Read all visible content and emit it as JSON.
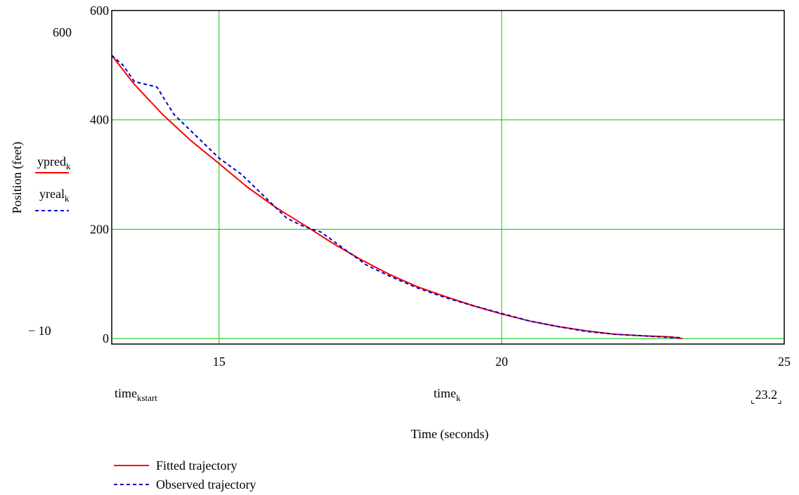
{
  "chart_data": {
    "type": "line",
    "x_range": [
      13.1,
      25
    ],
    "y_range": [
      -10,
      600
    ],
    "x_ticks": [
      15,
      20,
      25
    ],
    "y_ticks": [
      0,
      200,
      400,
      600
    ],
    "grid": true,
    "grid_color": "#00cc00",
    "axis_limit_labels": {
      "y_top": "600",
      "y_bottom": "− 10",
      "x_right": "23.2"
    },
    "ylabel": "Position (feet)",
    "xlabel": "Time (seconds)",
    "y_expressions": [
      {
        "base": "ypred",
        "sub": "k",
        "style": "solid",
        "color": "#ff0000"
      },
      {
        "base": "yreal",
        "sub": "k",
        "style": "dashed",
        "color": "#0000cc"
      }
    ],
    "x_expressions": {
      "left": {
        "base": "time",
        "sub": "kstart"
      },
      "center": {
        "base": "time",
        "sub": "k"
      }
    },
    "legend": {
      "placement": "bottom-left",
      "entries": [
        {
          "label": "Fitted trajectory",
          "style": "solid",
          "color": "#ff0000"
        },
        {
          "label": "Observed trajectory",
          "style": "dashed",
          "color": "#0000cc"
        }
      ]
    },
    "series": [
      {
        "name": "Fitted trajectory",
        "style": "solid",
        "color": "#ff0000",
        "x": [
          13.1,
          13.5,
          14.0,
          14.5,
          15.0,
          15.5,
          16.0,
          16.5,
          17.0,
          17.5,
          18.0,
          18.5,
          19.0,
          19.5,
          20.0,
          20.5,
          21.0,
          21.5,
          22.0,
          22.5,
          23.0,
          23.2
        ],
        "y": [
          518,
          465,
          410,
          362,
          320,
          277,
          240,
          208,
          175,
          145,
          118,
          95,
          77,
          60,
          45,
          32,
          22,
          14,
          8,
          5,
          3,
          0
        ]
      },
      {
        "name": "Observed trajectory",
        "style": "dashed",
        "color": "#0000cc",
        "x": [
          13.1,
          13.3,
          13.5,
          13.9,
          14.2,
          14.6,
          15.0,
          15.4,
          15.8,
          16.2,
          16.5,
          16.8,
          17.2,
          17.6,
          18.0,
          18.5,
          19.0,
          19.5,
          20.0,
          20.5,
          21.0,
          21.5,
          22.0,
          22.5,
          23.0,
          23.2
        ],
        "y": [
          518,
          500,
          470,
          460,
          410,
          370,
          330,
          300,
          260,
          220,
          205,
          195,
          165,
          135,
          115,
          93,
          75,
          60,
          46,
          32,
          22,
          13,
          8,
          5,
          2,
          2
        ]
      }
    ]
  }
}
